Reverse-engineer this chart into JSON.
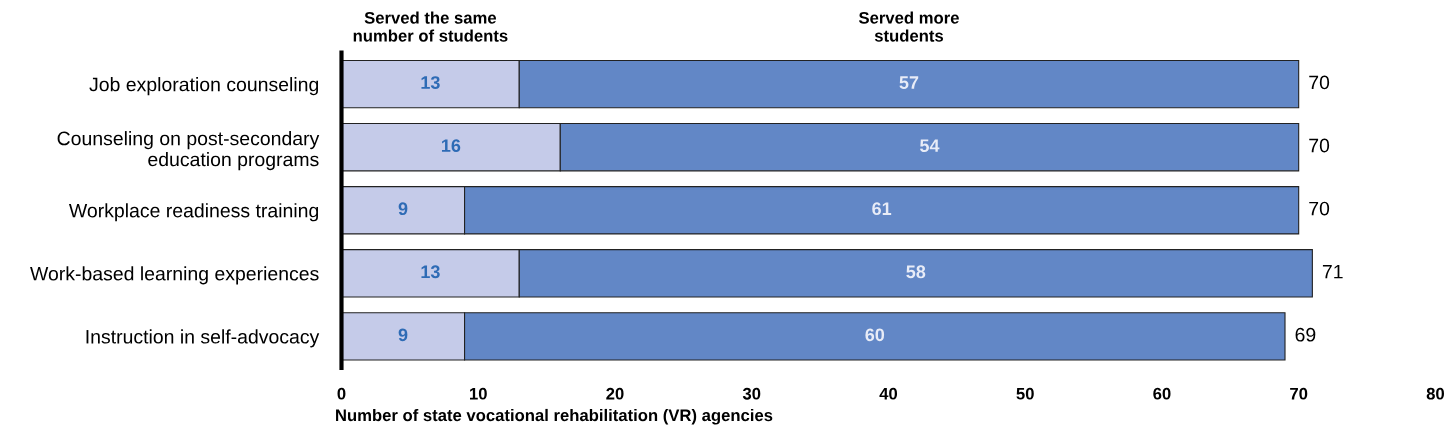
{
  "chart_data": {
    "type": "bar",
    "orientation": "horizontal",
    "stacked": true,
    "categories": [
      "Job exploration counseling",
      "Counseling on post-secondary\neducation programs",
      "Workplace readiness training",
      "Work-based learning experiences",
      "Instruction in self-advocacy"
    ],
    "series": [
      {
        "name": "Served the same\nnumber of students",
        "color": "#c5cbe9",
        "values": [
          13,
          16,
          9,
          13,
          9
        ]
      },
      {
        "name": "Served more\nstudents",
        "color": "#6287c6",
        "values": [
          57,
          54,
          61,
          58,
          60
        ]
      }
    ],
    "data_labels": true,
    "totals": [
      "70",
      "70",
      "70",
      "71",
      "69"
    ],
    "xlim": [
      0,
      80
    ],
    "xticks": [
      0,
      10,
      20,
      30,
      40,
      50,
      60,
      70,
      80
    ],
    "xlabel": "Number of state vocational rehabilitation (VR) agencies",
    "grid": false,
    "legend": false
  }
}
